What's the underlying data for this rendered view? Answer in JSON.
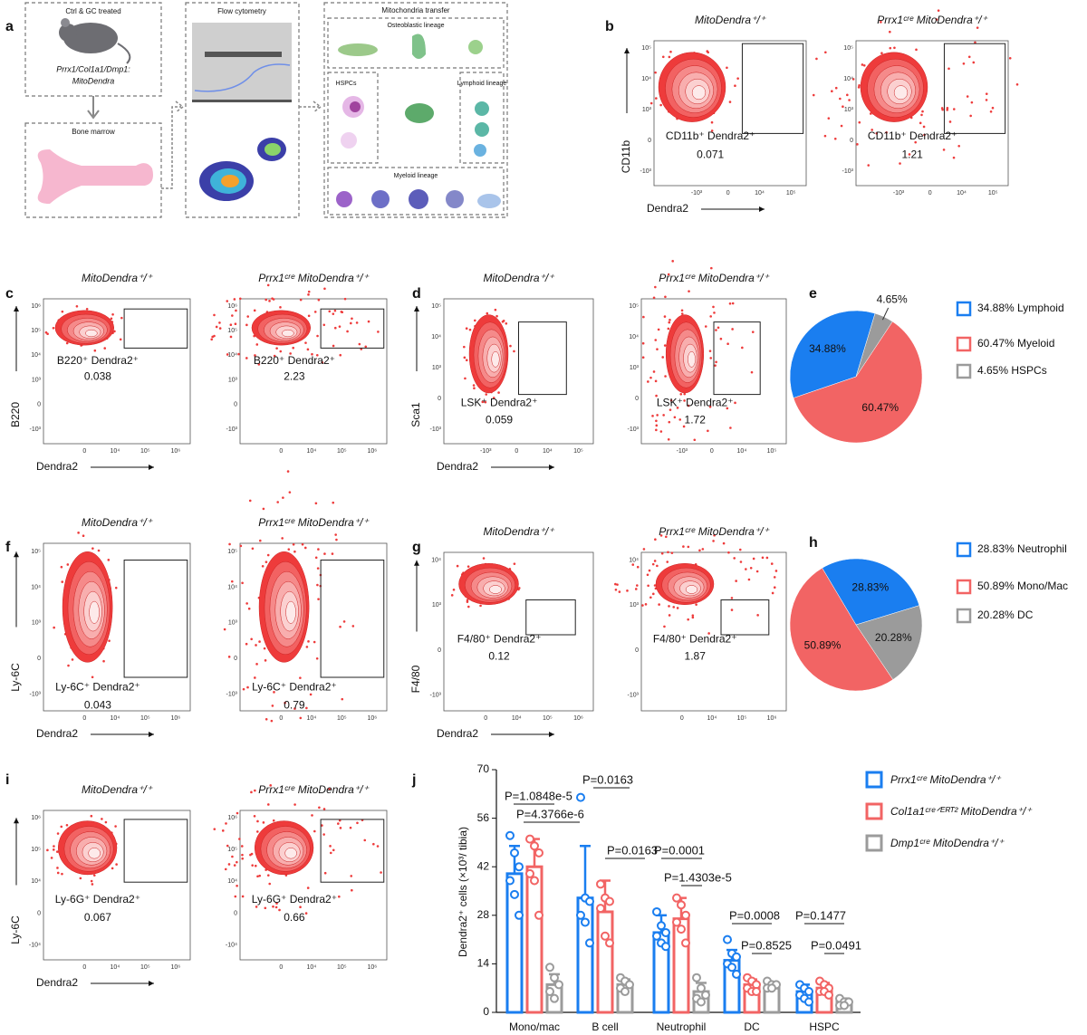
{
  "panel_labels": [
    "a",
    "b",
    "c",
    "d",
    "e",
    "f",
    "g",
    "h",
    "i",
    "j"
  ],
  "schematic": {
    "treatment": "Ctrl & GC treated",
    "model": [
      "Prrx1/Col1a1/Dmp1:",
      "MitoDendra"
    ],
    "bone_marrow": "Bone marrow",
    "flow": "Flow cytometry",
    "transfer": "Mitochondria transfer",
    "lineages": [
      "Osteoblastic lineage",
      "HSPCs",
      "Lymphoid lineage",
      "Myeloid lineage"
    ]
  },
  "flow_panels": [
    {
      "ylabel": "CD11b",
      "xlabel": "Dendra2",
      "titles": [
        "MitoDendra⁺/⁺",
        "Prrx1ᶜʳᵉ MitoDendra⁺/⁺"
      ],
      "gate": "CD11b⁺ Dendra2⁺",
      "percents": [
        0.071,
        1.21
      ],
      "xticks": [
        "-10³",
        "0",
        "10⁴",
        "10⁵"
      ],
      "yticks": [
        "10⁵",
        "10⁴",
        "10³",
        "0",
        "-10³"
      ]
    },
    {
      "ylabel": "B220",
      "xlabel": "Dendra2",
      "titles": [
        "MitoDendra⁺/⁺",
        "Prrx1ᶜʳᵉ MitoDendra⁺/⁺"
      ],
      "gate": "B220⁺ Dendra2⁺",
      "percents": [
        0.038,
        2.23
      ],
      "xticks": [
        "0",
        "10⁴",
        "10⁵",
        "10⁶"
      ],
      "yticks": [
        "10⁶",
        "10⁵",
        "10⁴",
        "10³",
        "0",
        "-10³"
      ]
    },
    {
      "ylabel": "Sca1",
      "xlabel": "Dendra2",
      "titles": [
        "MitoDendra⁺/⁺",
        "Prrx1ᶜʳᵉ MitoDendra⁺/⁺"
      ],
      "gate": "LSK⁺ Dendra2⁺",
      "percents": [
        0.059,
        1.72
      ],
      "xticks": [
        "-10³",
        "0",
        "10⁴",
        "10⁵"
      ],
      "yticks": [
        "10⁵",
        "10⁴",
        "10³",
        "0",
        "-10³"
      ]
    },
    {
      "ylabel": "Ly-6C",
      "xlabel": "Dendra2",
      "titles": [
        "MitoDendra⁺/⁺",
        "Prrx1ᶜʳᵉ MitoDendra⁺/⁺"
      ],
      "gate": "Ly-6C⁺ Dendra2⁺",
      "percents": [
        0.043,
        0.79
      ],
      "xticks": [
        "0",
        "10⁴",
        "10⁵",
        "10⁶"
      ],
      "yticks": [
        "10⁵",
        "10⁴",
        "10³",
        "0",
        "-10³"
      ]
    },
    {
      "ylabel": "F4/80",
      "xlabel": "Dendra2",
      "titles": [
        "MitoDendra⁺/⁺",
        "Prrx1ᶜʳᵉ MitoDendra⁺/⁺"
      ],
      "gate": "F4/80⁺ Dendra2⁺",
      "percents": [
        0.12,
        1.87
      ],
      "xticks": [
        "0",
        "10⁴",
        "10⁵",
        "10⁶"
      ],
      "yticks": [
        "10⁴",
        "10³",
        "0",
        "-10³"
      ]
    },
    {
      "ylabel": "Ly-6C",
      "xlabel": "Dendra2",
      "titles": [
        "MitoDendra⁺/⁺",
        "Prrx1ᶜʳᵉ MitoDendra⁺/⁺"
      ],
      "gate": "Ly-6G⁺ Dendra2⁺",
      "percents": [
        0.067,
        0.66
      ],
      "xticks": [
        "0",
        "10⁴",
        "10⁵",
        "10⁶"
      ],
      "yticks": [
        "10⁶",
        "10⁵",
        "10⁴",
        "0",
        "-10⁴"
      ]
    }
  ],
  "chart_data": [
    {
      "type": "pie",
      "categories": [
        "34.88% Lymphoid",
        "60.47% Myeloid",
        "4.65% HSPCs"
      ],
      "values": [
        34.88,
        60.47,
        4.65
      ],
      "value_labels": [
        "34.88%",
        "60.47%",
        "4.65%"
      ],
      "colors": [
        "#1a7ef0",
        "#f26464",
        "#9b9b9b"
      ],
      "direction": "counterclockwise"
    },
    {
      "type": "pie",
      "categories": [
        "28.83% Neutrophil",
        "50.89% Mono/Mac",
        "20.28% DC"
      ],
      "values": [
        28.83,
        50.89,
        20.28
      ],
      "value_labels": [
        "28.83%",
        "50.89%",
        "20.28%"
      ],
      "colors": [
        "#1a7ef0",
        "#f26464",
        "#9b9b9b"
      ],
      "direction": "counterclockwise"
    },
    {
      "type": "bar",
      "ylabel": "Dendra2⁺ cells (×10³/ tibia)",
      "categories": [
        "Mono/mac",
        "B cell",
        "Neutrophil",
        "DC",
        "HSPC"
      ],
      "ylim": [
        0,
        70
      ],
      "yticks": [
        0,
        14,
        28,
        42,
        56,
        70
      ],
      "series": [
        {
          "name": "Prrx1ᶜʳᵉ MitoDendra⁺/⁺",
          "color": "#1a7ef0",
          "values": [
            40,
            33,
            23,
            15,
            6
          ],
          "errors": [
            8,
            15,
            5,
            3,
            2
          ],
          "points": [
            [
              51,
              46,
              42,
              38,
              34,
              28
            ],
            [
              62,
              33,
              32,
              28,
              26,
              20
            ],
            [
              29,
              25,
              23,
              22,
              20,
              19
            ],
            [
              21,
              17,
              16,
              14,
              13,
              11
            ],
            [
              8,
              7,
              6,
              5,
              4,
              3
            ]
          ]
        },
        {
          "name": "Col1a1ᶜʳᵉᐟᴱᴿᵀ² MitoDendra⁺/⁺",
          "color": "#f26464",
          "values": [
            42,
            29,
            27,
            8,
            7
          ],
          "errors": [
            8,
            9,
            6,
            1.5,
            1.5
          ],
          "points": [
            [
              50,
              48,
              46,
              40,
              38,
              28
            ],
            [
              37,
              33,
              32,
              30,
              22,
              20
            ],
            [
              33,
              31,
              28,
              26,
              24,
              20
            ],
            [
              10,
              9,
              8,
              7,
              6,
              6
            ],
            [
              9,
              8,
              7,
              6,
              6,
              5
            ]
          ]
        },
        {
          "name": "Dmp1ᶜʳᵉ MitoDendra⁺/⁺",
          "color": "#9b9b9b",
          "values": [
            8,
            8,
            6,
            7,
            3
          ],
          "errors": [
            3,
            1.5,
            2.5,
            1.5,
            1
          ],
          "points": [
            [
              13,
              10,
              8,
              6,
              4
            ],
            [
              10,
              9,
              8,
              7,
              6
            ],
            [
              10,
              7,
              5,
              4,
              3
            ],
            [
              9,
              8,
              8,
              7,
              7
            ],
            [
              4,
              3,
              3,
              2,
              2
            ]
          ]
        }
      ],
      "annotations": [
        "P=1.0848e-5",
        "P=4.3766e-6",
        "P=0.0163",
        "P=0.0163",
        "P=0.0001",
        "P=1.4303e-5",
        "P=0.0008",
        "P=0.8525",
        "P=0.1477",
        "P=0.0491"
      ]
    }
  ]
}
